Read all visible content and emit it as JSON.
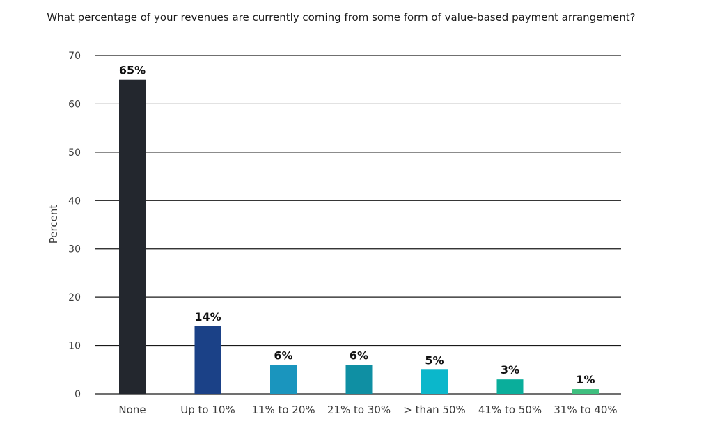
{
  "chart_data": {
    "type": "bar",
    "title": "What percentage of your revenues are currently coming from some form of value-based payment arrangement?",
    "xlabel": "",
    "ylabel": "Percent",
    "ylim": [
      0,
      70
    ],
    "yticks": [
      0,
      10,
      20,
      30,
      40,
      50,
      60,
      70
    ],
    "grid": true,
    "categories": [
      "None",
      "Up to 10%",
      "11% to 20%",
      "21% to 30%",
      "> than 50%",
      "41% to 50%",
      "31% to 40%"
    ],
    "values": [
      65,
      14,
      6,
      6,
      5,
      3,
      1
    ],
    "data_labels": [
      "65%",
      "14%",
      "6%",
      "6%",
      "5%",
      "3%",
      "1%"
    ],
    "colors": [
      "#23272e",
      "#1b4187",
      "#1a95be",
      "#0f8fa3",
      "#0bb7cb",
      "#0aae9b",
      "#3fbf7f"
    ]
  }
}
